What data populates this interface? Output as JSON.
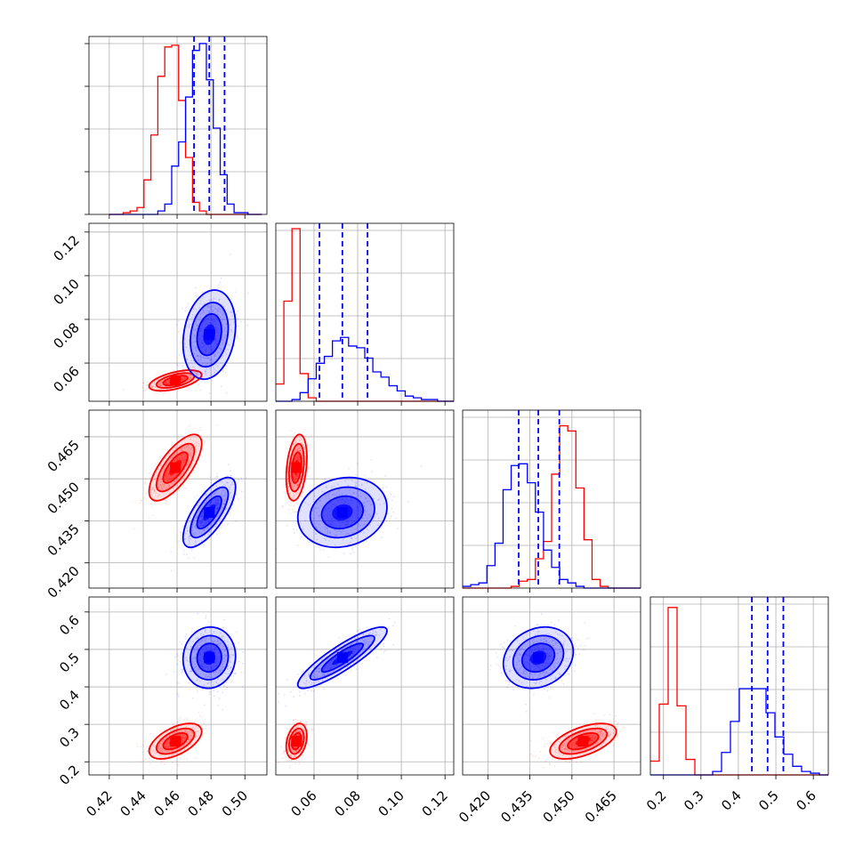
{
  "chart_data": {
    "type": "corner",
    "title": "",
    "parameters": [
      "",
      "",
      "",
      ""
    ],
    "series": [
      {
        "color": "#ff0000",
        "means": [
          0.459,
          0.052,
          0.454,
          0.255
        ],
        "stds": [
          0.0072,
          0.0022,
          0.0055,
          0.022
        ],
        "corr": [
          [
            1,
            0.55,
            0.72,
            0.55
          ],
          [
            0.55,
            1,
            0.3,
            0.3
          ],
          [
            0.72,
            0.3,
            1,
            0.55
          ],
          [
            0.55,
            0.3,
            0.55,
            1
          ]
        ],
        "contours": [
          "inner-fill",
          "contour-1",
          "contour-2",
          "contour-3"
        ]
      },
      {
        "color": "#0000ff",
        "means": [
          0.479,
          0.073,
          0.438,
          0.478
        ],
        "stds": [
          0.0072,
          0.0095,
          0.0058,
          0.038
        ],
        "corr": [
          [
            1,
            0.2,
            0.72,
            0.05
          ],
          [
            0.2,
            1,
            0.15,
            0.88
          ],
          [
            0.72,
            0.15,
            1,
            0.2
          ],
          [
            0.05,
            0.88,
            0.2,
            1
          ]
        ],
        "contours": [
          "inner-fill",
          "contour-1",
          "contour-2",
          "contour-3"
        ]
      }
    ],
    "histograms": [
      {
        "param": 0,
        "bin_edges": [
          0.42,
          0.51
        ],
        "bins": 22,
        "red": [
          0,
          0,
          0.01,
          0.02,
          0.04,
          0.2,
          0.46,
          0.8,
          0.97,
          0.98,
          0.66,
          0.33,
          0.07,
          0.02,
          0,
          0,
          0,
          0,
          0,
          0,
          0,
          0
        ],
        "blue": [
          0,
          0,
          0,
          0,
          0,
          0,
          0,
          0.02,
          0.06,
          0.28,
          0.42,
          0.68,
          0.95,
          0.99,
          0.78,
          0.5,
          0.23,
          0.06,
          0.01,
          0.01,
          0,
          0
        ],
        "quantiles_blue": [
          0.47,
          0.479,
          0.488
        ]
      },
      {
        "param": 1,
        "bin_edges": [
          0.0425,
          0.124
        ],
        "bins": 22,
        "red": [
          0.1,
          0.58,
          1.0,
          0.16,
          0.02,
          0,
          0,
          0,
          0,
          0,
          0,
          0,
          0,
          0,
          0,
          0,
          0,
          0,
          0,
          0,
          0,
          0
        ],
        "blue": [
          0,
          0,
          0.01,
          0.05,
          0.13,
          0.22,
          0.26,
          0.35,
          0.37,
          0.32,
          0.31,
          0.25,
          0.17,
          0.14,
          0.09,
          0.06,
          0.03,
          0.02,
          0.01,
          0.01,
          0,
          0
        ],
        "quantiles_blue": [
          0.0625,
          0.073,
          0.0845
        ]
      },
      {
        "param": 2,
        "bin_edges": [
          0.411,
          0.4745
        ],
        "bins": 22,
        "red": [
          0,
          0,
          0,
          0,
          0,
          0,
          0.01,
          0.04,
          0.05,
          0.17,
          0.27,
          0.66,
          0.94,
          0.91,
          0.58,
          0.28,
          0.05,
          0.01,
          0,
          0,
          0,
          0
        ],
        "blue": [
          0.01,
          0.02,
          0.03,
          0.13,
          0.26,
          0.57,
          0.71,
          0.72,
          0.61,
          0.44,
          0.22,
          0.12,
          0.05,
          0.03,
          0.01,
          0,
          0,
          0,
          0,
          0,
          0,
          0
        ],
        "quantiles_blue": [
          0.431,
          0.438,
          0.4455
        ]
      },
      {
        "param": 3,
        "bin_edges": [
          0.165,
          0.64
        ],
        "bins": 20,
        "red": [
          0.08,
          0.41,
          0.97,
          0.4,
          0.09,
          0,
          0,
          0,
          0,
          0,
          0,
          0,
          0,
          0,
          0,
          0,
          0,
          0,
          0,
          0
        ],
        "blue": [
          0,
          0,
          0,
          0,
          0,
          0,
          0,
          0.02,
          0.13,
          0.31,
          0.5,
          0.5,
          0.5,
          0.36,
          0.22,
          0.12,
          0.05,
          0.02,
          0.01,
          0
        ],
        "quantiles_blue": [
          0.436,
          0.478,
          0.52
        ]
      }
    ],
    "axes": [
      {
        "param": 0,
        "range": [
          0.408,
          0.513
        ],
        "ticks": [
          0.42,
          0.44,
          0.46,
          0.48,
          0.5
        ],
        "tick_labels": [
          "0.42",
          "0.44",
          "0.46",
          "0.48",
          "0.50"
        ]
      },
      {
        "param": 1,
        "range": [
          0.0425,
          0.124
        ],
        "ticks": [
          0.06,
          0.08,
          0.1,
          0.12
        ],
        "tick_labels": [
          "0.06",
          "0.08",
          "0.10",
          "0.12"
        ]
      },
      {
        "param": 2,
        "range": [
          0.411,
          0.4745
        ],
        "ticks": [
          0.42,
          0.435,
          0.45,
          0.465
        ],
        "tick_labels": [
          "0.420",
          "0.435",
          "0.450",
          "0.465"
        ]
      },
      {
        "param": 3,
        "range": [
          0.165,
          0.64
        ],
        "ticks": [
          0.2,
          0.3,
          0.4,
          0.5,
          0.6
        ],
        "tick_labels": [
          "0.2",
          "0.3",
          "0.4",
          "0.5",
          "0.6"
        ]
      }
    ],
    "grid": true,
    "legend": "none"
  }
}
